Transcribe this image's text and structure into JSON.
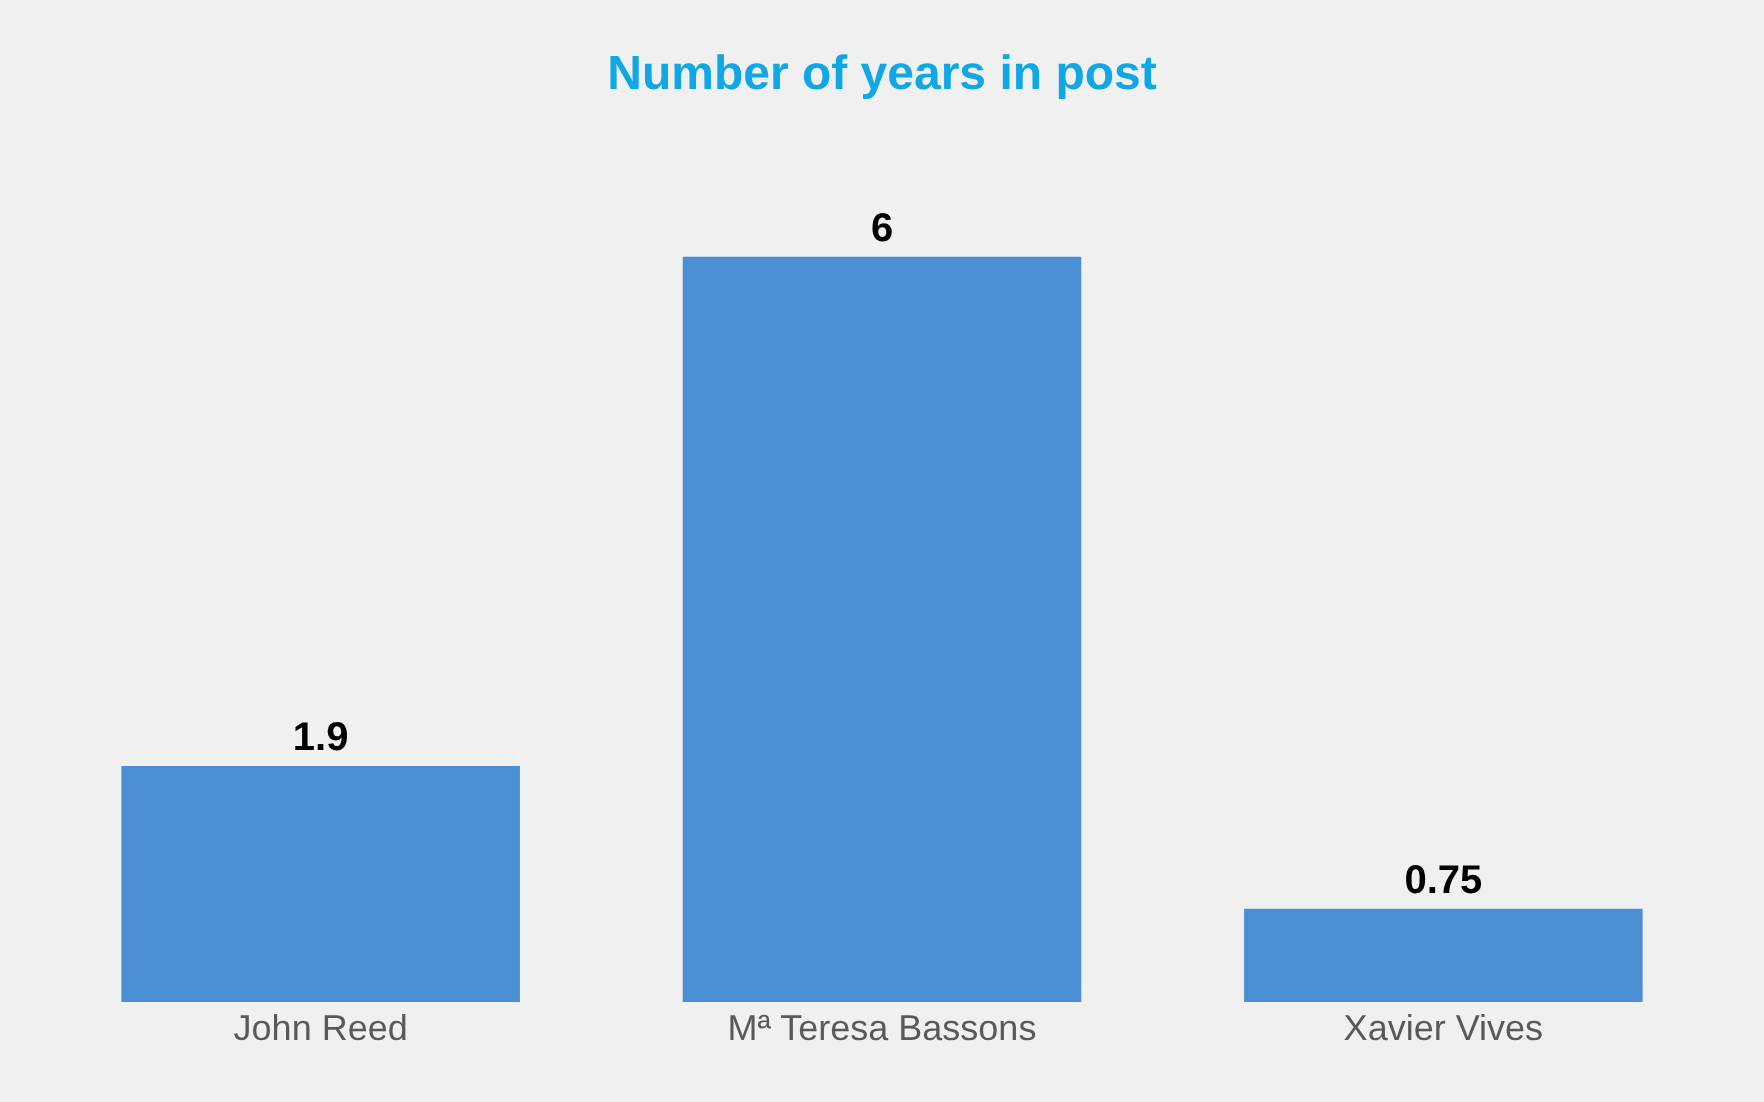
{
  "chart_data": {
    "type": "bar",
    "title": "Number of years in post",
    "categories": [
      "John Reed",
      "Mª Teresa Bassons",
      "Xavier Vives"
    ],
    "values": [
      1.9,
      6,
      0.75
    ],
    "color": "#4a8fd4",
    "data_labels": true,
    "legend": false
  }
}
